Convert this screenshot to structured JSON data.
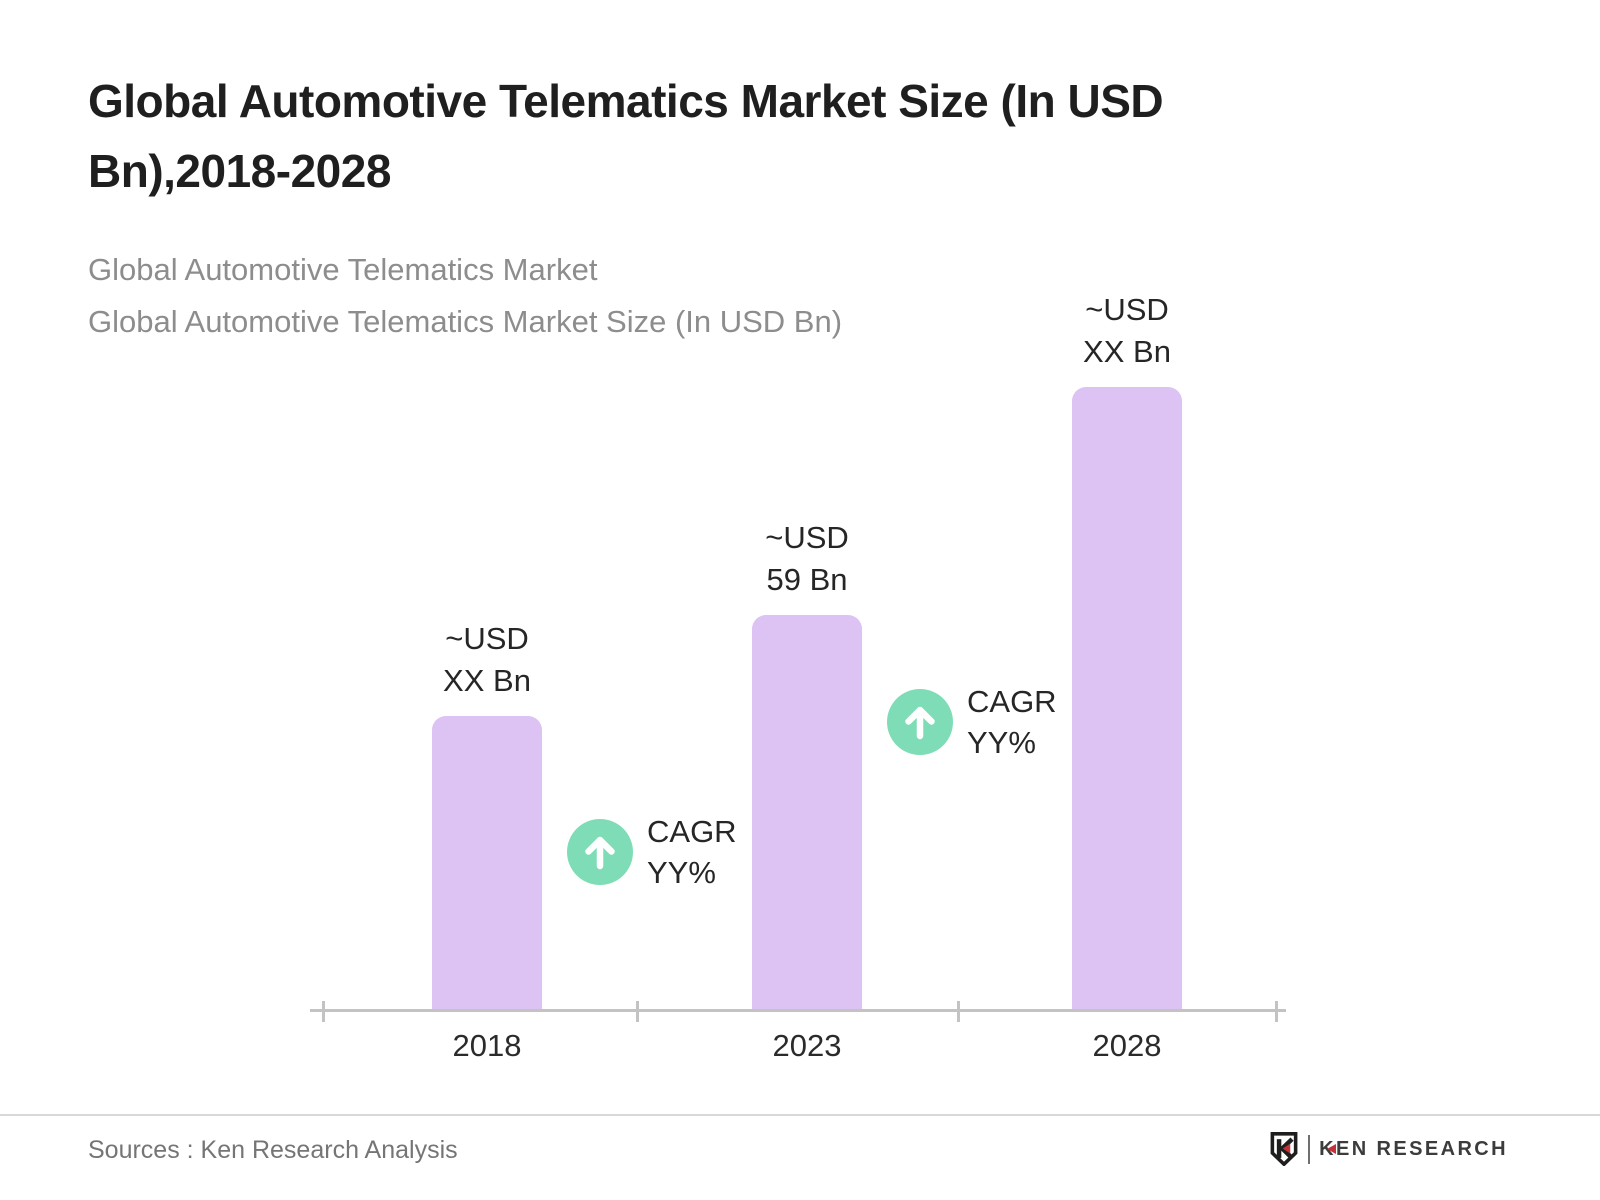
{
  "title": "Global Automotive Telematics Market Size (In USD Bn),2018-2028",
  "subtitle": {
    "line1": "Global Automotive Telematics Market",
    "line2": "Global Automotive Telematics Market Size (In USD Bn)"
  },
  "chart_data": {
    "type": "bar",
    "title": "Global Automotive Telematics Market Size (In USD Bn),2018-2028",
    "categories": [
      "2018",
      "2023",
      "2028"
    ],
    "values": [
      44,
      59,
      93
    ],
    "values_note": "Only 2023 is labeled numerically (59); 2018 and 2028 are masked as 'XX' and estimated from bar heights",
    "value_labels": [
      [
        "~USD",
        "XX Bn"
      ],
      [
        "~USD",
        "59 Bn"
      ],
      [
        "~USD",
        "XX Bn"
      ]
    ],
    "xlabel": "",
    "ylabel": "",
    "ylim": [
      0,
      100
    ],
    "grid": false,
    "legend": "none",
    "bar_color": "#dcc3f4",
    "annotations": [
      {
        "icon": "arrow-up-circle",
        "lines": [
          "CAGR",
          "YY%"
        ],
        "between": [
          "2018",
          "2023"
        ]
      },
      {
        "icon": "arrow-up-circle",
        "lines": [
          "CAGR",
          "YY%"
        ],
        "between": [
          "2023",
          "2028"
        ]
      }
    ]
  },
  "footer": {
    "source": "Sources : Ken Research Analysis",
    "logo_text": "KEN RESEARCH"
  },
  "colors": {
    "title_ink": "#1f1f1f",
    "subtitle_gray": "#8d8d8d",
    "bar_purple": "#dcc3f4",
    "badge_green": "#7eddb6",
    "axis_gray": "#c3c3c3",
    "logo_red": "#c43238"
  }
}
